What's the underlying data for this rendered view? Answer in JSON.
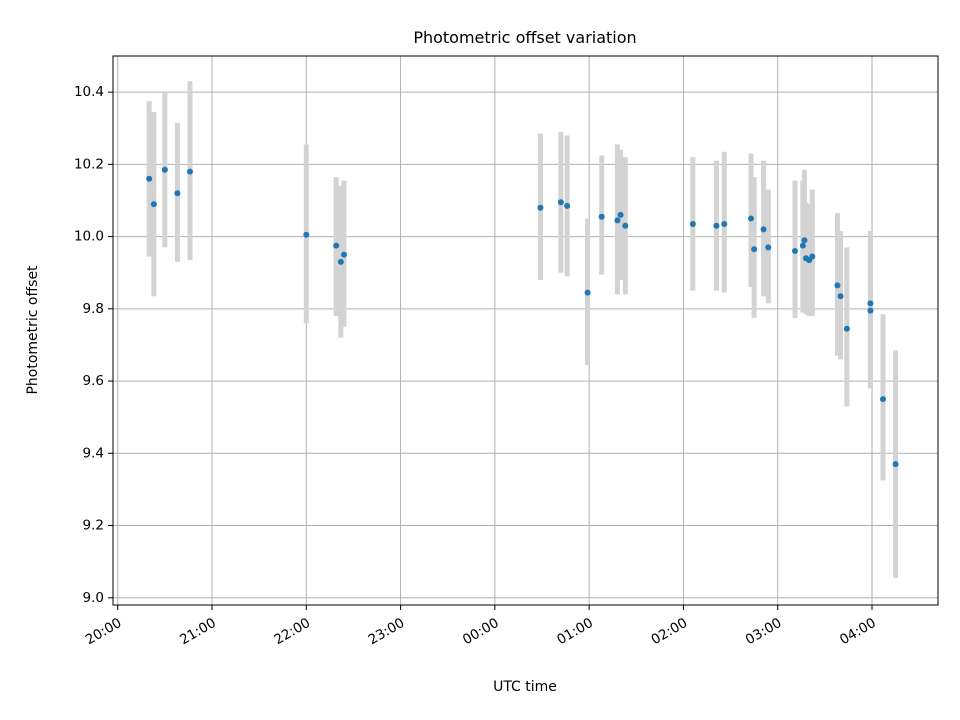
{
  "chart_data": {
    "type": "scatter",
    "title": "Photometric offset variation",
    "xlabel": "UTC time",
    "ylabel": "Photometric offset",
    "xlim": [
      "19:57",
      "04:42"
    ],
    "ylim": [
      8.98,
      10.5
    ],
    "xticks": [
      "20:00",
      "21:00",
      "22:00",
      "23:00",
      "00:00",
      "01:00",
      "02:00",
      "03:00",
      "04:00"
    ],
    "yticks": [
      9.0,
      9.2,
      9.4,
      9.6,
      9.8,
      10.0,
      10.2,
      10.4
    ],
    "ytick_labels": [
      "9.0",
      "9.2",
      "9.4",
      "9.6",
      "9.8",
      "10.0",
      "10.2",
      "10.4"
    ],
    "grid": true,
    "marker_color": "#1f77b4",
    "errorbar_color": "#d3d3d3",
    "series": [
      {
        "x": [
          "20:20",
          "20:23",
          "20:30",
          "20:38",
          "20:46",
          "22:00",
          "22:19",
          "22:22",
          "22:24",
          "00:29",
          "00:42",
          "00:46",
          "00:59",
          "01:08",
          "01:18",
          "01:20",
          "01:23",
          "02:06",
          "02:21",
          "02:26",
          "02:43",
          "02:45",
          "02:51",
          "02:54",
          "03:11",
          "03:16",
          "03:17",
          "03:18",
          "03:20",
          "03:22",
          "03:38",
          "03:40",
          "03:44",
          "03:59",
          "03:59",
          "04:07",
          "04:15"
        ],
        "y": [
          10.16,
          10.09,
          10.185,
          10.12,
          10.18,
          10.005,
          9.975,
          9.93,
          9.95,
          10.08,
          10.095,
          10.085,
          9.845,
          10.055,
          10.045,
          10.06,
          10.03,
          10.035,
          10.03,
          10.035,
          10.05,
          9.965,
          10.02,
          9.97,
          9.96,
          9.975,
          9.99,
          9.94,
          9.935,
          9.945,
          9.865,
          9.835,
          9.745,
          9.815,
          9.795,
          9.55,
          9.37
        ],
        "y_low": [
          9.945,
          9.835,
          9.97,
          9.93,
          9.935,
          9.76,
          9.78,
          9.72,
          9.75,
          9.88,
          9.9,
          9.89,
          9.645,
          9.895,
          9.84,
          9.88,
          9.84,
          9.85,
          9.85,
          9.845,
          9.86,
          9.775,
          9.835,
          9.815,
          9.775,
          9.79,
          9.795,
          9.785,
          9.78,
          9.78,
          9.67,
          9.66,
          9.53,
          9.58,
          9.58,
          9.325,
          9.055
        ],
        "y_high": [
          10.375,
          10.345,
          10.4,
          10.315,
          10.43,
          10.255,
          10.165,
          10.14,
          10.155,
          10.285,
          10.29,
          10.28,
          10.05,
          10.225,
          10.255,
          10.24,
          10.22,
          10.22,
          10.21,
          10.235,
          10.23,
          10.165,
          10.21,
          10.13,
          10.155,
          10.155,
          10.185,
          10.095,
          10.09,
          10.13,
          10.065,
          10.015,
          9.97,
          10.015,
          10.015,
          9.785,
          9.685
        ]
      }
    ]
  }
}
